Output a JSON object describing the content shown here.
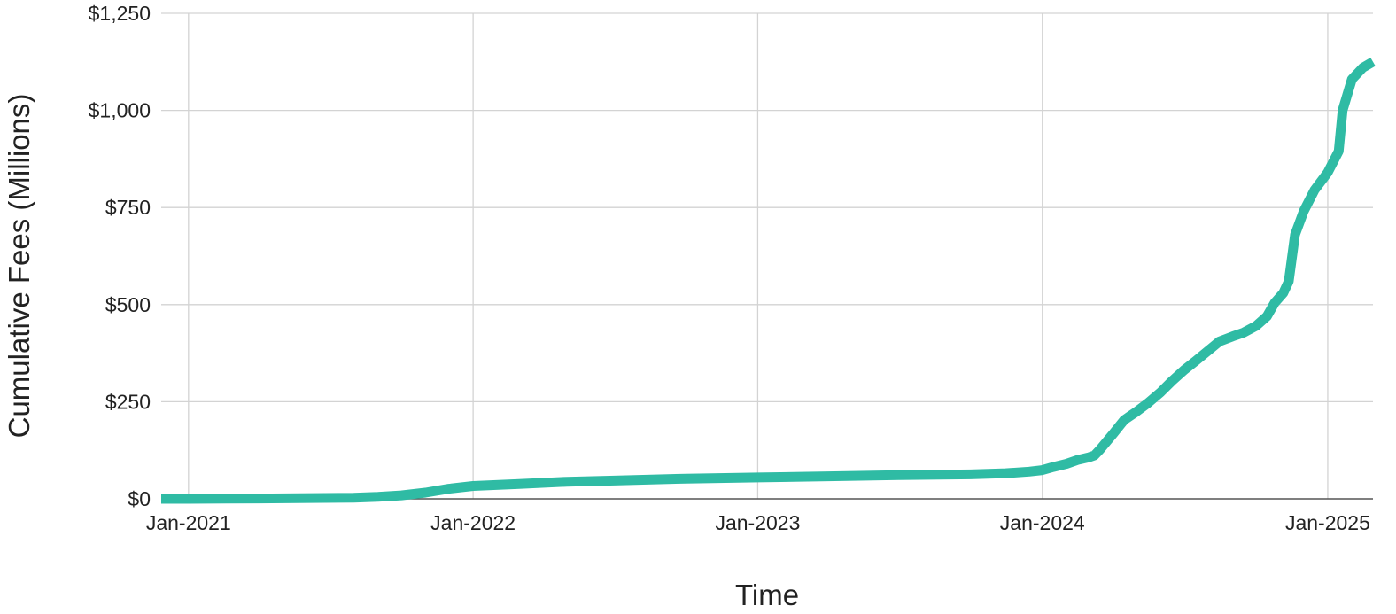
{
  "chart_data": {
    "type": "line",
    "title": "",
    "xlabel": "Time",
    "ylabel": "Cumulative Fees (Millions)",
    "x_range": [
      "2020-11-27",
      "2025-02-28"
    ],
    "ylim": [
      0,
      1250
    ],
    "grid": true,
    "legend": "none",
    "colors": {
      "line": "#2fbba4",
      "grid": "#d3d3d3",
      "baseline": "#555555"
    },
    "y_ticks": [
      {
        "value": 0,
        "label": "$0"
      },
      {
        "value": 250,
        "label": "$250"
      },
      {
        "value": 500,
        "label": "$500"
      },
      {
        "value": 750,
        "label": "$750"
      },
      {
        "value": 1000,
        "label": "$1,000"
      },
      {
        "value": 1250,
        "label": "$1,250"
      }
    ],
    "x_ticks": [
      {
        "value": "2021-01-01",
        "label": "Jan-2021"
      },
      {
        "value": "2022-01-01",
        "label": "Jan-2022"
      },
      {
        "value": "2023-01-01",
        "label": "Jan-2023"
      },
      {
        "value": "2024-01-01",
        "label": "Jan-2024"
      },
      {
        "value": "2025-01-01",
        "label": "Jan-2025"
      }
    ],
    "series": [
      {
        "x": [
          "2020-11-27",
          "2021-01-01",
          "2021-04-01",
          "2021-08-01",
          "2021-09-01",
          "2021-10-01",
          "2021-11-01",
          "2021-12-01",
          "2022-01-01",
          "2022-03-01",
          "2022-05-01",
          "2022-07-01",
          "2022-10-01",
          "2023-01-01",
          "2023-04-01",
          "2023-07-01",
          "2023-10-01",
          "2023-11-15",
          "2023-12-15",
          "2024-01-01",
          "2024-01-15",
          "2024-02-01",
          "2024-02-15",
          "2024-03-01",
          "2024-03-08",
          "2024-03-15",
          "2024-04-01",
          "2024-04-15",
          "2024-05-01",
          "2024-05-15",
          "2024-06-01",
          "2024-06-15",
          "2024-07-01",
          "2024-07-15",
          "2024-08-01",
          "2024-08-15",
          "2024-09-01",
          "2024-09-15",
          "2024-10-01",
          "2024-10-15",
          "2024-10-25",
          "2024-11-05",
          "2024-11-12",
          "2024-11-20",
          "2024-12-01",
          "2024-12-15",
          "2025-01-01",
          "2025-01-15",
          "2025-01-20",
          "2025-02-01",
          "2025-02-15",
          "2025-02-28"
        ],
        "y": [
          0,
          0,
          1,
          3,
          5,
          9,
          16,
          26,
          33,
          38,
          44,
          47,
          52,
          55,
          58,
          61,
          63,
          66,
          70,
          74,
          82,
          90,
          100,
          107,
          112,
          127,
          168,
          203,
          225,
          246,
          275,
          303,
          332,
          354,
          382,
          405,
          418,
          428,
          445,
          470,
          505,
          530,
          560,
          680,
          740,
          795,
          840,
          895,
          1000,
          1080,
          1110,
          1125
        ]
      }
    ]
  }
}
